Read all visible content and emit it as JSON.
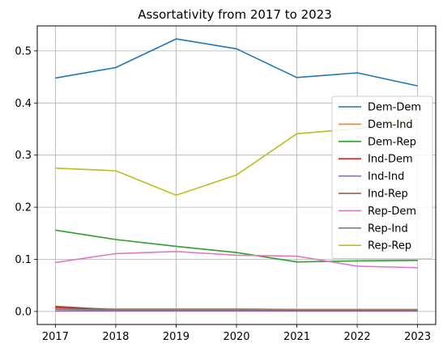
{
  "chart_data": {
    "type": "line",
    "title": "Assortativity from 2017 to 2023",
    "xlabel": "",
    "ylabel": "",
    "x": [
      "2017",
      "2018",
      "2019",
      "2020",
      "2021",
      "2022",
      "2023"
    ],
    "xlim": [
      2016.7,
      2023.3
    ],
    "ylim": [
      -0.025,
      0.548
    ],
    "yticks": [
      "0.0",
      "0.1",
      "0.2",
      "0.3",
      "0.4",
      "0.5"
    ],
    "grid": true,
    "legend_position": "right",
    "series": [
      {
        "name": "Dem-Dem",
        "color": "#1f77b4",
        "values": [
          0.448,
          0.468,
          0.523,
          0.504,
          0.449,
          0.458,
          0.433
        ]
      },
      {
        "name": "Dem-Ind",
        "color": "#ff7f0e",
        "values": [
          0.006,
          0.005,
          0.005,
          0.005,
          0.004,
          0.004,
          0.004
        ]
      },
      {
        "name": "Dem-Rep",
        "color": "#2ca02c",
        "values": [
          0.156,
          0.138,
          0.125,
          0.113,
          0.095,
          0.097,
          0.098
        ]
      },
      {
        "name": "Ind-Dem",
        "color": "#d62728",
        "values": [
          0.008,
          0.002,
          0.002,
          0.002,
          0.002,
          0.002,
          0.002
        ]
      },
      {
        "name": "Ind-Ind",
        "color": "#9467bd",
        "values": [
          0.001,
          0.001,
          0.001,
          0.001,
          0.001,
          0.001,
          0.001
        ]
      },
      {
        "name": "Ind-Rep",
        "color": "#8c564b",
        "values": [
          0.01,
          0.003,
          0.003,
          0.003,
          0.002,
          0.002,
          0.002
        ]
      },
      {
        "name": "Rep-Dem",
        "color": "#e377c2",
        "values": [
          0.094,
          0.111,
          0.115,
          0.108,
          0.106,
          0.087,
          0.084
        ]
      },
      {
        "name": "Rep-Ind",
        "color": "#7f7f7f",
        "values": [
          0.004,
          0.003,
          0.003,
          0.003,
          0.003,
          0.003,
          0.003
        ]
      },
      {
        "name": "Rep-Rep",
        "color": "#bcbd22",
        "values": [
          0.275,
          0.27,
          0.223,
          0.262,
          0.341,
          0.351,
          0.37
        ]
      }
    ]
  }
}
